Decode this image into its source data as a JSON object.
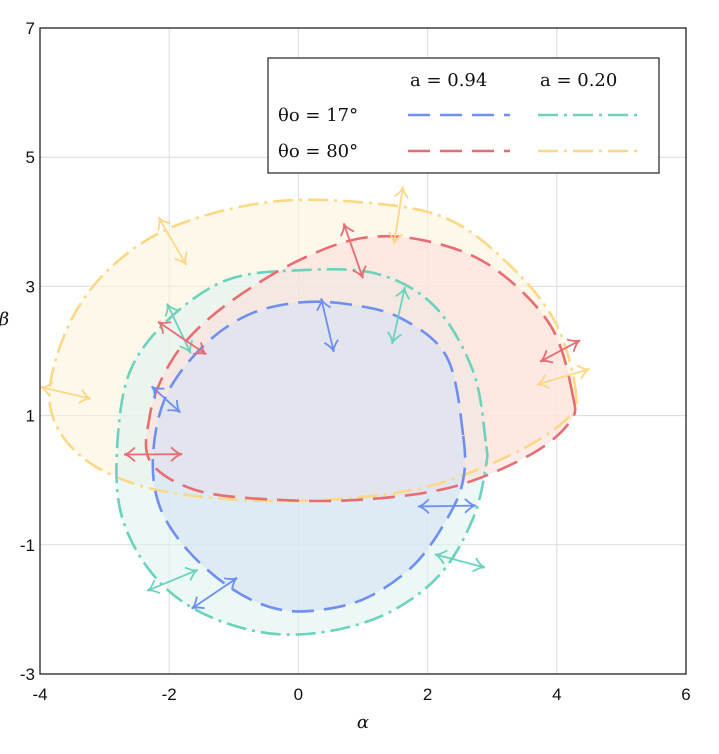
{
  "chart_data": {
    "type": "line",
    "xlabel": "α",
    "ylabel": "β",
    "xlim": [
      -4,
      6
    ],
    "ylim": [
      -3,
      7
    ],
    "xticks": [
      "-4",
      "-2",
      "0",
      "2",
      "4",
      "6"
    ],
    "yticks": [
      "-3",
      "-1",
      "1",
      "3",
      "5",
      "7"
    ],
    "grid": true,
    "legend": {
      "placement": "top-right",
      "col_headers": [
        "a = 0.94",
        "a = 0.20"
      ],
      "row_headers": [
        "θo = 17°",
        "θo = 80°"
      ]
    },
    "series": [
      {
        "key": "s94_17",
        "spin": 0.94,
        "inclination": 17,
        "color": "#6f8ff0",
        "fill": "#d6e3f5",
        "dash": "22 10",
        "points": [
          [
            2.55,
            0.7
          ],
          [
            2.3,
            1.9
          ],
          [
            1.6,
            2.5
          ],
          [
            0.8,
            2.72
          ],
          [
            0.0,
            2.75
          ],
          [
            -0.8,
            2.55
          ],
          [
            -1.5,
            2.05
          ],
          [
            -2.05,
            1.3
          ],
          [
            -2.25,
            0.4
          ],
          [
            -2.15,
            -0.4
          ],
          [
            -1.7,
            -1.1
          ],
          [
            -1.0,
            -1.7
          ],
          [
            -0.3,
            -2.0
          ],
          [
            0.4,
            -2.0
          ],
          [
            1.1,
            -1.8
          ],
          [
            1.8,
            -1.3
          ],
          [
            2.3,
            -0.6
          ],
          [
            2.55,
            0.0
          ]
        ],
        "arrows": [
          [
            -2.05,
            1.25,
            0.6
          ],
          [
            0.45,
            2.4,
            0.85
          ],
          [
            2.3,
            -0.4,
            0.9
          ],
          [
            -1.3,
            -1.75,
            0.85
          ]
        ]
      },
      {
        "key": "s20_17",
        "spin": 0.2,
        "inclination": 17,
        "color": "#6cd2bd",
        "fill": "#ddf3ee",
        "dash": "20 6 3 6",
        "points": [
          [
            2.9,
            0.6
          ],
          [
            2.7,
            1.7
          ],
          [
            2.1,
            2.7
          ],
          [
            1.2,
            3.2
          ],
          [
            0.0,
            3.25
          ],
          [
            -1.1,
            3.1
          ],
          [
            -2.0,
            2.5
          ],
          [
            -2.6,
            1.7
          ],
          [
            -2.8,
            0.6
          ],
          [
            -2.75,
            -0.5
          ],
          [
            -2.3,
            -1.4
          ],
          [
            -1.6,
            -2.0
          ],
          [
            -0.6,
            -2.35
          ],
          [
            0.4,
            -2.35
          ],
          [
            1.4,
            -2.05
          ],
          [
            2.2,
            -1.45
          ],
          [
            2.7,
            -0.6
          ],
          [
            2.9,
            0.2
          ]
        ],
        "arrows": [
          [
            -1.85,
            2.35,
            0.85
          ],
          [
            1.55,
            2.55,
            0.9
          ],
          [
            2.5,
            -1.25,
            0.8
          ],
          [
            -1.95,
            -1.55,
            0.85
          ]
        ]
      },
      {
        "key": "s94_80",
        "spin": 0.94,
        "inclination": 80,
        "color": "#e86d73",
        "fill": "#fbe0da",
        "dash": "22 10",
        "points": [
          [
            4.25,
            1.3
          ],
          [
            3.9,
            2.4
          ],
          [
            3.0,
            3.3
          ],
          [
            2.0,
            3.7
          ],
          [
            1.0,
            3.75
          ],
          [
            0.0,
            3.4
          ],
          [
            -1.0,
            2.8
          ],
          [
            -1.7,
            2.2
          ],
          [
            -2.1,
            1.6
          ],
          [
            -2.3,
            1.0
          ],
          [
            -2.3,
            0.3
          ],
          [
            -1.6,
            -0.15
          ],
          [
            -0.4,
            -0.3
          ],
          [
            1.0,
            -0.3
          ],
          [
            2.4,
            -0.1
          ],
          [
            3.6,
            0.4
          ],
          [
            4.2,
            0.9
          ]
        ],
        "arrows": [
          [
            -1.8,
            2.2,
            0.9
          ],
          [
            0.85,
            3.55,
            0.9
          ],
          [
            4.05,
            2.0,
            0.7
          ],
          [
            -2.25,
            0.4,
            0.9
          ]
        ]
      },
      {
        "key": "s20_80",
        "spin": 0.2,
        "inclination": 80,
        "color": "#fad884",
        "fill": "#fdf3dc",
        "dash": "20 6 3 6",
        "points": [
          [
            4.3,
            1.3
          ],
          [
            4.0,
            2.4
          ],
          [
            3.3,
            3.3
          ],
          [
            2.3,
            4.05
          ],
          [
            1.0,
            4.3
          ],
          [
            -0.5,
            4.3
          ],
          [
            -2.0,
            3.9
          ],
          [
            -3.0,
            3.2
          ],
          [
            -3.6,
            2.3
          ],
          [
            -3.85,
            1.2
          ],
          [
            -3.4,
            0.4
          ],
          [
            -2.4,
            -0.1
          ],
          [
            -1.0,
            -0.3
          ],
          [
            0.5,
            -0.3
          ],
          [
            2.0,
            -0.1
          ],
          [
            3.3,
            0.4
          ],
          [
            4.1,
            0.9
          ]
        ],
        "arrows": [
          [
            -1.95,
            3.7,
            0.85
          ],
          [
            1.55,
            4.1,
            0.9
          ],
          [
            4.1,
            1.6,
            0.85
          ],
          [
            -3.6,
            1.35,
            0.8
          ]
        ]
      }
    ]
  }
}
